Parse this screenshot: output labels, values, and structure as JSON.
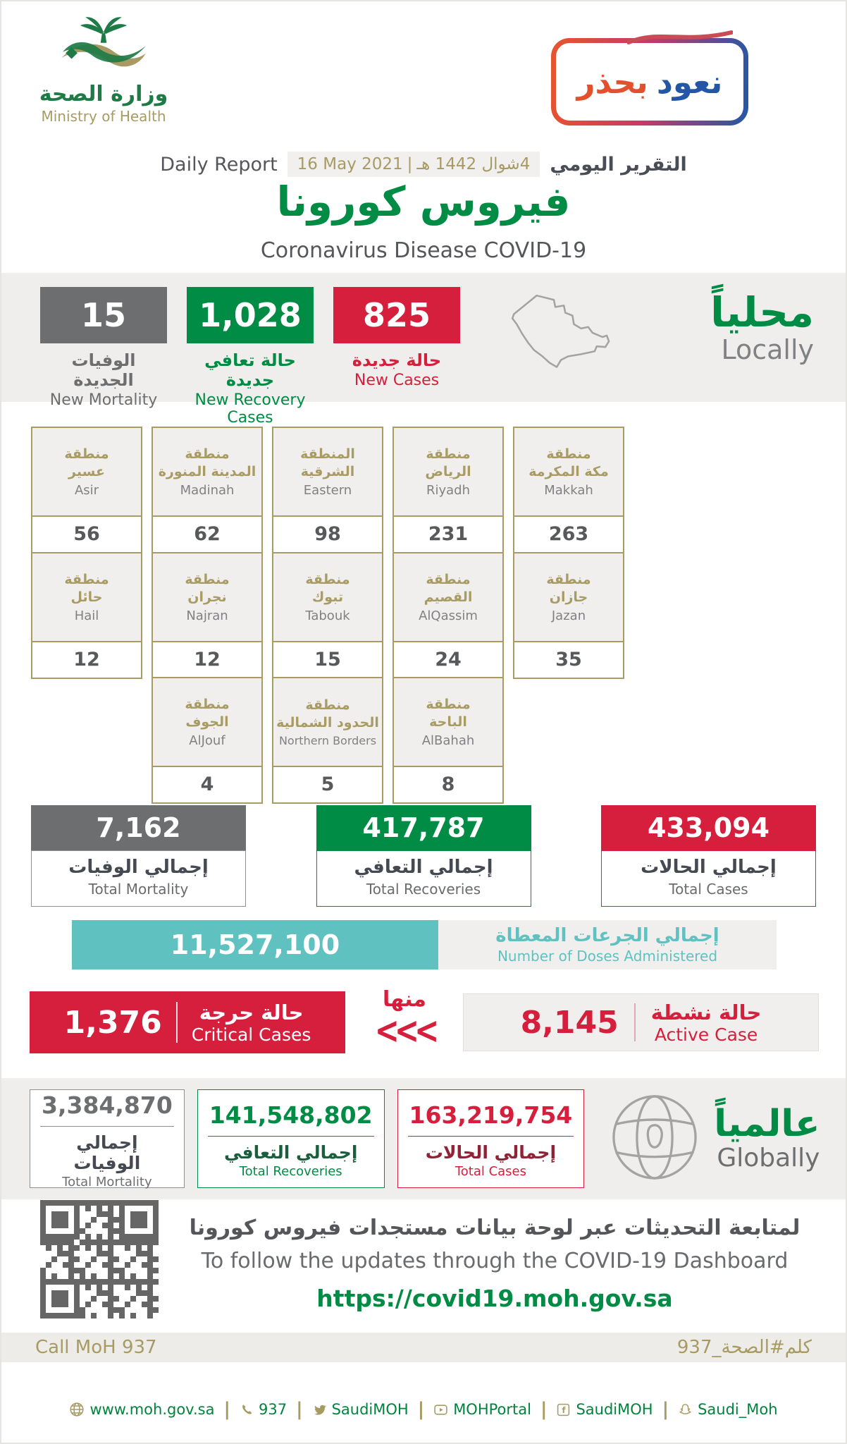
{
  "header": {
    "logo_ar": "وزارة الصحة",
    "logo_en": "Ministry of Health",
    "badge_word1": "نعود",
    "badge_word2": "بحذر",
    "daily_report_en": "Daily Report",
    "date_en": "16 May 2021",
    "date_separator": "|",
    "date_ar": "4شوال 1442 هـ",
    "daily_report_ar": "التقرير اليومي",
    "title_ar": "فيروس كورونا",
    "title_en": "Coronavirus Disease COVID-19"
  },
  "locally": {
    "heading_ar": "محلياً",
    "heading_en": "Locally",
    "new_mortality": {
      "value": "15",
      "label_ar": "الوفيات الجديدة",
      "label_en": "New Mortality"
    },
    "new_recoveries": {
      "value": "1,028",
      "label_ar": "حالة تعافي جديدة",
      "label_en": "New Recovery Cases"
    },
    "new_cases": {
      "value": "825",
      "label_ar": "حالة جديدة",
      "label_en": "New Cases"
    }
  },
  "regions": [
    {
      "ar1": "منطقة",
      "ar2": "عسير",
      "en": "Asir",
      "value": "56"
    },
    {
      "ar1": "منطقة",
      "ar2": "المدينة المنورة",
      "en": "Madinah",
      "value": "62"
    },
    {
      "ar1": "المنطقة",
      "ar2": "الشرقية",
      "en": "Eastern",
      "value": "98"
    },
    {
      "ar1": "منطقة",
      "ar2": "الرياض",
      "en": "Riyadh",
      "value": "231"
    },
    {
      "ar1": "منطقة",
      "ar2": "مكة المكرمة",
      "en": "Makkah",
      "value": "263"
    },
    {
      "ar1": "منطقة",
      "ar2": "حائل",
      "en": "Hail",
      "value": "12"
    },
    {
      "ar1": "منطقة",
      "ar2": "نجران",
      "en": "Najran",
      "value": "12"
    },
    {
      "ar1": "منطقة",
      "ar2": "تبوك",
      "en": "Tabouk",
      "value": "15"
    },
    {
      "ar1": "منطقة",
      "ar2": "القصيم",
      "en": "AlQassim",
      "value": "24"
    },
    {
      "ar1": "منطقة",
      "ar2": "جازان",
      "en": "Jazan",
      "value": "35"
    },
    {
      "ar1": "منطقة",
      "ar2": "الجوف",
      "en": "AlJouf",
      "value": "4"
    },
    {
      "ar1": "منطقة",
      "ar2": "الحدود الشمالية",
      "en": "Northern Borders",
      "value": "5"
    },
    {
      "ar1": "منطقة",
      "ar2": "الباحة",
      "en": "AlBahah",
      "value": "8"
    }
  ],
  "totals_local": {
    "mortality": {
      "value": "7,162",
      "label_ar": "إجمالي الوفيات",
      "label_en": "Total Mortality"
    },
    "recoveries": {
      "value": "417,787",
      "label_ar": "إجمالي التعافي",
      "label_en": "Total Recoveries"
    },
    "cases": {
      "value": "433,094",
      "label_ar": "إجمالي الحالات",
      "label_en": "Total Cases"
    }
  },
  "doses": {
    "value": "11,527,100",
    "label_ar": "إجمالي الجرعات المعطاة",
    "label_en": "Number of Doses Administered"
  },
  "critical": {
    "value": "1,376",
    "label_ar": "حالة حرجة",
    "label_en": "Critical Cases"
  },
  "relation": {
    "label_ar": "منها",
    "chevrons": "<<<"
  },
  "active": {
    "value": "8,145",
    "label_ar": "حالة نشطة",
    "label_en": "Active Case"
  },
  "globally": {
    "heading_ar": "عالمياً",
    "heading_en": "Globally",
    "mortality": {
      "value": "3,384,870",
      "label_ar": "إجمالي الوفيات",
      "label_en": "Total Mortality"
    },
    "recoveries": {
      "value": "141,548,802",
      "label_ar": "إجمالي التعافي",
      "label_en": "Total Recoveries"
    },
    "cases": {
      "value": "163,219,754",
      "label_ar": "إجمالي الحالات",
      "label_en": "Total Cases"
    }
  },
  "dashboard": {
    "line_ar": "لمتابعة التحديثات عبر لوحة بيانات مستجدات فيروس كورونا",
    "line_en": "To follow the updates through the COVID-19 Dashboard",
    "url": "https://covid19.moh.gov.sa"
  },
  "call_bar": {
    "left": "Call MoH 937",
    "right": "كلم#الصحة_937"
  },
  "footer": {
    "separator": "|",
    "items": [
      {
        "icon": "globe-icon",
        "label": "www.moh.gov.sa"
      },
      {
        "icon": "phone-icon",
        "label": "937"
      },
      {
        "icon": "twitter-icon",
        "label": "SaudiMOH"
      },
      {
        "icon": "youtube-icon",
        "label": "MOHPortal"
      },
      {
        "icon": "facebook-icon",
        "label": "SaudiMOH"
      },
      {
        "icon": "snapchat-icon",
        "label": "Saudi_Moh"
      }
    ]
  },
  "colors": {
    "green": "#008C44",
    "red": "#D51F3C",
    "gray": "#6D6E70",
    "gold": "#A79B63",
    "teal": "#5FC2C0"
  }
}
